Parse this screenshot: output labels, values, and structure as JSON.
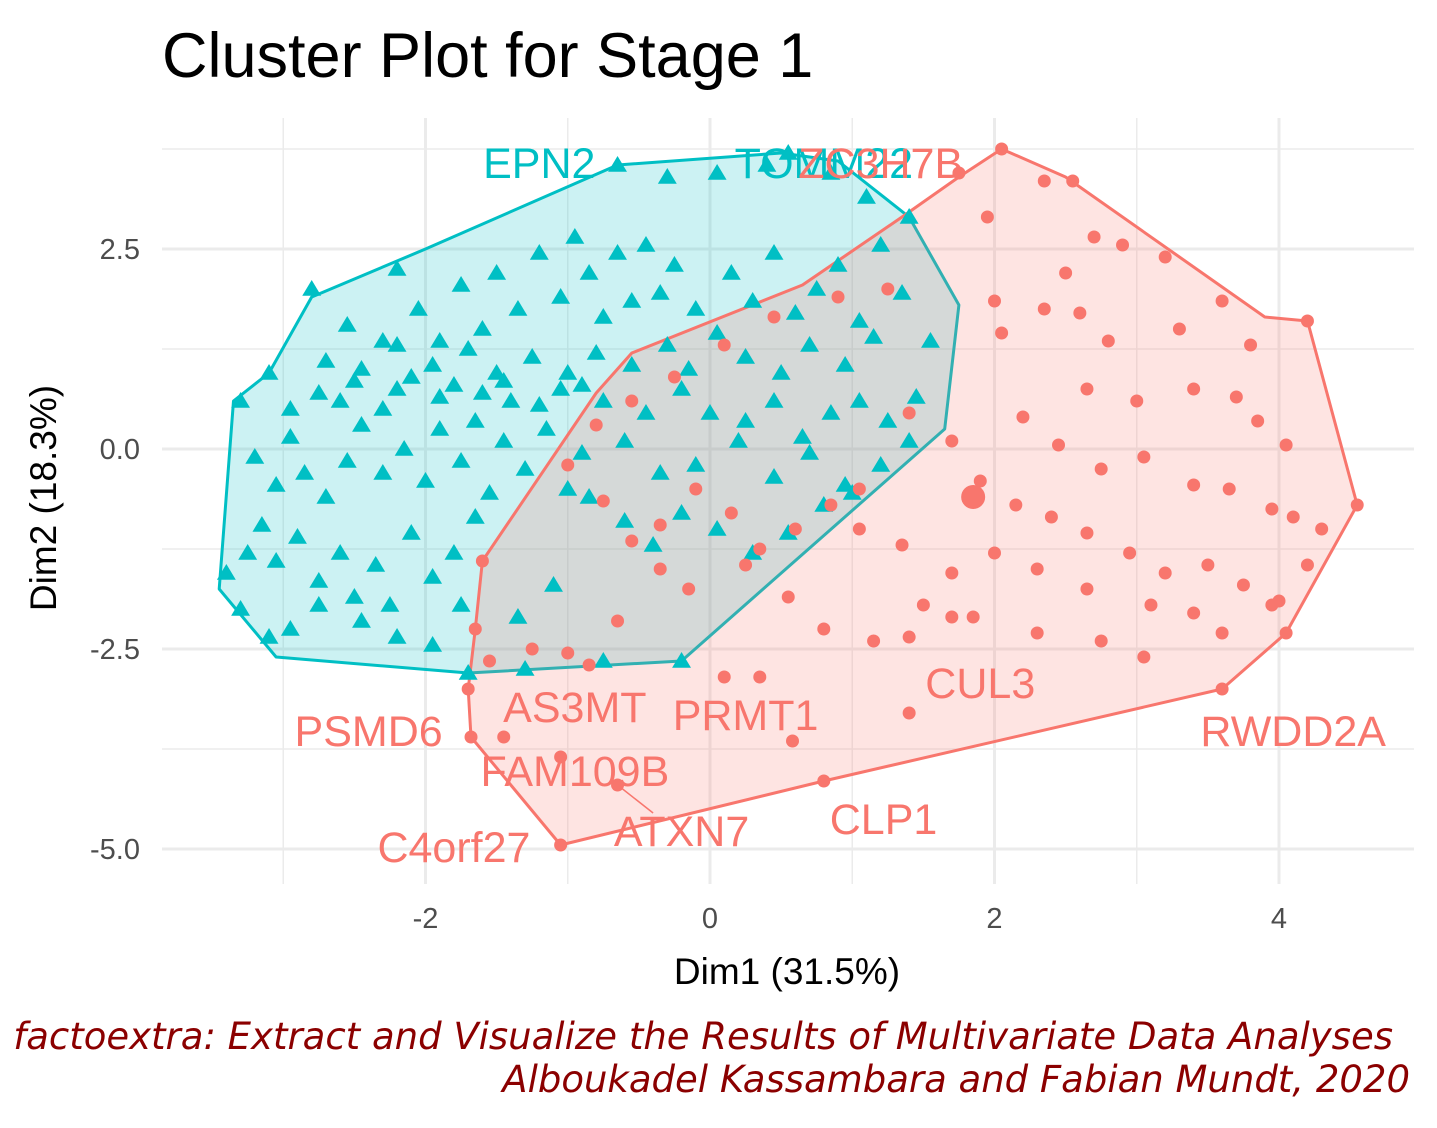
{
  "chart_data": {
    "type": "scatter",
    "title": "Cluster Plot for Stage 1",
    "xlabel": "Dim1 (31.5%)",
    "ylabel": "Dim2 (18.3%)",
    "xlim": [
      -3.95,
      5.0
    ],
    "ylim": [
      -5.4,
      3.9
    ],
    "x_ticks": [
      -2,
      0,
      2,
      4
    ],
    "x_tick_labels": [
      "-2",
      "0",
      "2",
      "4"
    ],
    "y_ticks": [
      -5.0,
      -2.5,
      0.0,
      2.5
    ],
    "y_tick_labels": [
      "-5.0",
      "-2.5",
      "0.0",
      "2.5"
    ],
    "grid": true,
    "caption_lines": [
      "factoextra: Extract and Visualize the Results of Multivariate Data Analyses",
      "Alboukadel Kassambara and Fabian Mundt, 2020"
    ],
    "colors": {
      "cluster1": "#00BFC4",
      "cluster2": "#F8766D",
      "caption": "#8B0000",
      "grid": "#EBEBEB"
    },
    "clusters": [
      {
        "id": "1",
        "color": "#00BFC4",
        "shape": "triangle",
        "hull": [
          [
            -3.45,
            -1.75
          ],
          [
            -3.05,
            -2.6
          ],
          [
            -1.7,
            -2.8
          ],
          [
            -0.2,
            -2.65
          ],
          [
            1.65,
            0.25
          ],
          [
            1.75,
            1.8
          ],
          [
            1.4,
            2.9
          ],
          [
            0.9,
            3.6
          ],
          [
            0.5,
            3.7
          ],
          [
            -0.65,
            3.55
          ],
          [
            -2.0,
            2.5
          ],
          [
            -2.8,
            1.9
          ],
          [
            -3.1,
            0.95
          ],
          [
            -3.35,
            0.6
          ]
        ],
        "points": [
          [
            -3.3,
            0.6
          ],
          [
            -3.1,
            0.95
          ],
          [
            -2.95,
            0.5
          ],
          [
            -2.75,
            0.7
          ],
          [
            -2.6,
            0.6
          ],
          [
            -2.5,
            0.85
          ],
          [
            -2.3,
            0.5
          ],
          [
            -2.2,
            0.75
          ],
          [
            -2.1,
            0.9
          ],
          [
            -1.9,
            0.65
          ],
          [
            -1.8,
            0.8
          ],
          [
            -1.6,
            0.7
          ],
          [
            -1.5,
            0.95
          ],
          [
            -1.4,
            0.6
          ],
          [
            -1.2,
            0.55
          ],
          [
            -1.05,
            0.75
          ],
          [
            -0.9,
            0.8
          ],
          [
            -0.75,
            0.6
          ],
          [
            -3.2,
            -0.1
          ],
          [
            -3.05,
            -0.45
          ],
          [
            -2.95,
            0.15
          ],
          [
            -2.85,
            -0.3
          ],
          [
            -2.7,
            -0.6
          ],
          [
            -2.55,
            -0.15
          ],
          [
            -2.45,
            0.3
          ],
          [
            -2.3,
            -0.3
          ],
          [
            -2.15,
            0.0
          ],
          [
            -2.0,
            -0.4
          ],
          [
            -1.9,
            0.25
          ],
          [
            -1.75,
            -0.15
          ],
          [
            -1.65,
            0.35
          ],
          [
            -1.55,
            -0.55
          ],
          [
            -1.45,
            0.1
          ],
          [
            -1.3,
            -0.25
          ],
          [
            -1.15,
            0.25
          ],
          [
            -1.0,
            -0.5
          ],
          [
            -0.9,
            -0.05
          ],
          [
            -3.4,
            -1.55
          ],
          [
            -3.25,
            -1.3
          ],
          [
            -3.15,
            -0.95
          ],
          [
            -3.05,
            -1.4
          ],
          [
            -2.9,
            -1.1
          ],
          [
            -2.75,
            -1.65
          ],
          [
            -2.6,
            -1.3
          ],
          [
            -2.5,
            -1.85
          ],
          [
            -2.35,
            -1.45
          ],
          [
            -2.25,
            -1.95
          ],
          [
            -2.1,
            -1.05
          ],
          [
            -1.95,
            -1.6
          ],
          [
            -1.8,
            -1.3
          ],
          [
            -1.65,
            -0.85
          ],
          [
            -2.95,
            -2.25
          ],
          [
            -2.75,
            -1.95
          ],
          [
            -2.45,
            -2.15
          ],
          [
            -2.2,
            -2.35
          ],
          [
            -1.95,
            -2.45
          ],
          [
            -1.75,
            -1.95
          ],
          [
            -3.3,
            -2.0
          ],
          [
            -3.1,
            -2.35
          ],
          [
            -1.35,
            -2.1
          ],
          [
            -1.1,
            -1.7
          ],
          [
            -2.8,
            2.0
          ],
          [
            -2.55,
            1.55
          ],
          [
            -2.3,
            1.35
          ],
          [
            -2.2,
            2.25
          ],
          [
            -2.05,
            1.75
          ],
          [
            -1.9,
            1.35
          ],
          [
            -1.75,
            2.05
          ],
          [
            -1.6,
            1.5
          ],
          [
            -1.5,
            2.2
          ],
          [
            -1.35,
            1.75
          ],
          [
            -1.2,
            2.45
          ],
          [
            -1.05,
            1.9
          ],
          [
            -0.95,
            2.65
          ],
          [
            -0.85,
            2.2
          ],
          [
            -0.75,
            1.65
          ],
          [
            -0.65,
            2.45
          ],
          [
            -0.55,
            1.85
          ],
          [
            -0.45,
            2.55
          ],
          [
            -0.35,
            1.95
          ],
          [
            -0.25,
            2.3
          ],
          [
            -0.1,
            1.75
          ],
          [
            0.15,
            2.2
          ],
          [
            0.3,
            1.85
          ],
          [
            0.45,
            2.45
          ],
          [
            0.6,
            1.7
          ],
          [
            0.75,
            2.0
          ],
          [
            0.9,
            2.3
          ],
          [
            1.05,
            1.6
          ],
          [
            1.2,
            2.55
          ],
          [
            1.35,
            1.95
          ],
          [
            1.55,
            1.35
          ],
          [
            -2.7,
            1.1
          ],
          [
            -2.45,
            1.0
          ],
          [
            -2.2,
            1.3
          ],
          [
            -1.95,
            1.05
          ],
          [
            -1.7,
            1.25
          ],
          [
            -1.45,
            0.85
          ],
          [
            -1.25,
            1.15
          ],
          [
            -1.0,
            0.95
          ],
          [
            -0.8,
            1.2
          ],
          [
            -0.55,
            1.05
          ],
          [
            -0.3,
            1.3
          ],
          [
            -0.15,
            1.0
          ],
          [
            0.05,
            1.45
          ],
          [
            0.25,
            1.15
          ],
          [
            0.5,
            0.95
          ],
          [
            0.7,
            1.3
          ],
          [
            0.95,
            1.05
          ],
          [
            1.15,
            1.4
          ],
          [
            -0.45,
            0.45
          ],
          [
            -0.2,
            0.75
          ],
          [
            0.0,
            0.45
          ],
          [
            0.25,
            0.35
          ],
          [
            0.45,
            0.6
          ],
          [
            0.65,
            0.15
          ],
          [
            0.85,
            0.45
          ],
          [
            1.05,
            0.6
          ],
          [
            1.25,
            0.35
          ],
          [
            1.45,
            0.65
          ],
          [
            -0.6,
            0.1
          ],
          [
            -0.35,
            -0.3
          ],
          [
            -0.1,
            -0.2
          ],
          [
            0.2,
            0.1
          ],
          [
            0.45,
            -0.35
          ],
          [
            0.7,
            -0.05
          ],
          [
            0.95,
            -0.45
          ],
          [
            1.2,
            -0.2
          ],
          [
            1.4,
            0.1
          ],
          [
            -0.85,
            -0.6
          ],
          [
            -0.6,
            -0.9
          ],
          [
            -0.4,
            -1.2
          ],
          [
            -0.2,
            -0.8
          ],
          [
            0.05,
            -1.0
          ],
          [
            0.3,
            -1.3
          ],
          [
            0.55,
            -1.05
          ],
          [
            0.8,
            -0.7
          ],
          [
            1.0,
            -0.55
          ],
          [
            -0.65,
            3.55
          ],
          [
            -0.3,
            3.4
          ],
          [
            0.05,
            3.45
          ],
          [
            0.4,
            3.55
          ],
          [
            0.55,
            3.7
          ],
          [
            0.85,
            3.45
          ],
          [
            1.1,
            3.15
          ],
          [
            1.4,
            2.9
          ],
          [
            -1.7,
            -2.8
          ],
          [
            -1.3,
            -2.75
          ],
          [
            -0.75,
            -2.65
          ],
          [
            -0.2,
            -2.65
          ]
        ]
      },
      {
        "id": "2",
        "color": "#F8766D",
        "shape": "circle",
        "hull": [
          [
            -1.7,
            -3.0
          ],
          [
            -1.68,
            -3.6
          ],
          [
            -1.05,
            -4.95
          ],
          [
            0.8,
            -4.15
          ],
          [
            3.6,
            -3.0
          ],
          [
            4.05,
            -2.3
          ],
          [
            4.55,
            -0.7
          ],
          [
            4.2,
            1.6
          ],
          [
            3.9,
            1.65
          ],
          [
            2.5,
            3.4
          ],
          [
            2.05,
            3.75
          ],
          [
            1.75,
            3.4
          ],
          [
            1.35,
            2.9
          ],
          [
            0.65,
            2.05
          ],
          [
            -0.55,
            1.2
          ],
          [
            -0.8,
            0.7
          ],
          [
            -1.6,
            -1.4
          ],
          [
            -1.65,
            -2.25
          ]
        ],
        "center": [
          1.85,
          -0.6
        ],
        "points": [
          [
            2.05,
            3.75
          ],
          [
            1.75,
            3.45
          ],
          [
            1.95,
            2.9
          ],
          [
            2.35,
            3.35
          ],
          [
            2.55,
            3.35
          ],
          [
            2.7,
            2.65
          ],
          [
            2.5,
            2.2
          ],
          [
            2.9,
            2.55
          ],
          [
            3.2,
            2.4
          ],
          [
            2.0,
            1.85
          ],
          [
            2.35,
            1.75
          ],
          [
            2.6,
            1.7
          ],
          [
            2.05,
            1.45
          ],
          [
            2.8,
            1.35
          ],
          [
            3.3,
            1.5
          ],
          [
            3.6,
            1.85
          ],
          [
            3.8,
            1.3
          ],
          [
            4.2,
            1.6
          ],
          [
            2.65,
            0.75
          ],
          [
            3.0,
            0.6
          ],
          [
            3.4,
            0.75
          ],
          [
            3.7,
            0.65
          ],
          [
            3.85,
            0.35
          ],
          [
            4.05,
            0.05
          ],
          [
            2.2,
            0.4
          ],
          [
            2.45,
            0.05
          ],
          [
            2.75,
            -0.25
          ],
          [
            3.05,
            -0.1
          ],
          [
            3.4,
            -0.45
          ],
          [
            3.65,
            -0.5
          ],
          [
            3.95,
            -0.75
          ],
          [
            4.1,
            -0.85
          ],
          [
            4.3,
            -1.0
          ],
          [
            4.55,
            -0.7
          ],
          [
            1.4,
            0.45
          ],
          [
            1.7,
            0.1
          ],
          [
            1.9,
            -0.4
          ],
          [
            2.15,
            -0.7
          ],
          [
            2.4,
            -0.85
          ],
          [
            2.65,
            -1.05
          ],
          [
            2.95,
            -1.3
          ],
          [
            3.2,
            -1.55
          ],
          [
            3.5,
            -1.45
          ],
          [
            3.75,
            -1.7
          ],
          [
            4.0,
            -1.9
          ],
          [
            4.2,
            -1.45
          ],
          [
            2.0,
            -1.3
          ],
          [
            2.3,
            -1.5
          ],
          [
            2.65,
            -1.75
          ],
          [
            3.1,
            -1.95
          ],
          [
            3.4,
            -2.05
          ],
          [
            3.6,
            -2.3
          ],
          [
            3.95,
            -1.95
          ],
          [
            4.05,
            -2.3
          ],
          [
            1.05,
            -1.0
          ],
          [
            1.35,
            -1.2
          ],
          [
            1.7,
            -1.55
          ],
          [
            1.5,
            -1.95
          ],
          [
            1.85,
            -2.1
          ],
          [
            2.3,
            -2.3
          ],
          [
            2.75,
            -2.4
          ],
          [
            3.05,
            -2.6
          ],
          [
            1.05,
            -0.5
          ],
          [
            0.85,
            -0.7
          ],
          [
            0.6,
            -1.0
          ],
          [
            0.35,
            -1.25
          ],
          [
            0.15,
            -0.8
          ],
          [
            -0.1,
            -0.5
          ],
          [
            -0.35,
            -0.95
          ],
          [
            -0.55,
            -1.15
          ],
          [
            -0.75,
            -0.65
          ],
          [
            -1.0,
            -0.2
          ],
          [
            -0.8,
            0.3
          ],
          [
            -0.55,
            0.6
          ],
          [
            -0.25,
            0.9
          ],
          [
            0.1,
            1.3
          ],
          [
            0.45,
            1.65
          ],
          [
            0.9,
            1.9
          ],
          [
            1.25,
            2.0
          ],
          [
            -1.6,
            -1.4
          ],
          [
            -1.65,
            -2.25
          ],
          [
            -1.55,
            -2.65
          ],
          [
            -1.25,
            -2.5
          ],
          [
            -1.0,
            -2.55
          ],
          [
            -0.85,
            -2.7
          ],
          [
            -0.65,
            -2.15
          ],
          [
            -0.35,
            -1.5
          ],
          [
            -0.15,
            -1.75
          ],
          [
            0.25,
            -1.45
          ],
          [
            0.55,
            -1.85
          ],
          [
            0.8,
            -2.25
          ],
          [
            1.15,
            -2.4
          ],
          [
            1.4,
            -2.35
          ],
          [
            1.7,
            -2.1
          ],
          [
            -1.7,
            -3.0
          ],
          [
            -1.68,
            -3.6
          ],
          [
            -1.45,
            -3.6
          ],
          [
            -1.05,
            -3.85
          ],
          [
            -0.65,
            -4.2
          ],
          [
            -1.05,
            -4.95
          ],
          [
            0.1,
            -2.85
          ],
          [
            0.35,
            -2.85
          ],
          [
            0.58,
            -3.65
          ],
          [
            0.8,
            -4.15
          ],
          [
            1.4,
            -3.3
          ],
          [
            3.6,
            -3.0
          ]
        ]
      }
    ],
    "labels": [
      {
        "text": "EPN2",
        "cluster": "1",
        "x": -1.2,
        "y": 3.55
      },
      {
        "text": "TOMM22",
        "cluster": "1",
        "x": 0.8,
        "y": 3.55
      },
      {
        "text": "ZC3H7B",
        "cluster": "2",
        "x": 1.2,
        "y": 3.55
      },
      {
        "text": "AS3MT",
        "cluster": "2",
        "x": -0.95,
        "y": -3.25
      },
      {
        "text": "PSMD6",
        "cluster": "2",
        "x": -2.4,
        "y": -3.55
      },
      {
        "text": "PRMT1",
        "cluster": "2",
        "x": 0.25,
        "y": -3.35
      },
      {
        "text": "CUL3",
        "cluster": "2",
        "x": 1.9,
        "y": -2.95
      },
      {
        "text": "RWDD2A",
        "cluster": "2",
        "x": 4.1,
        "y": -3.55
      },
      {
        "text": "FAM109B",
        "cluster": "2",
        "x": -0.95,
        "y": -4.05
      },
      {
        "text": "ATXN7",
        "cluster": "2",
        "x": -0.2,
        "y": -4.8
      },
      {
        "text": "CLP1",
        "cluster": "2",
        "x": 1.22,
        "y": -4.65
      },
      {
        "text": "C4orf27",
        "cluster": "2",
        "x": -1.8,
        "y": -5.0
      }
    ]
  }
}
